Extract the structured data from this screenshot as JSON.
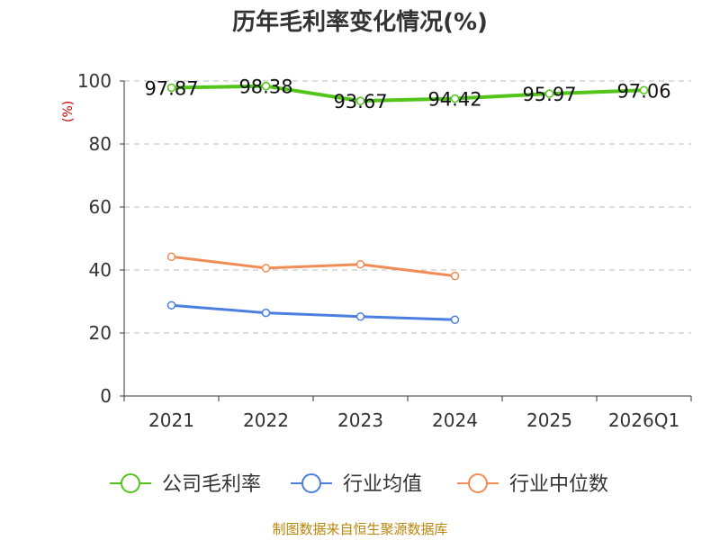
{
  "title": "历年毛利率变化情况(%)",
  "unit_label": "(%)",
  "footer": "制图数据来自恒生聚源数据库",
  "chart_data": {
    "type": "line",
    "categories": [
      "2021",
      "2022",
      "2023",
      "2024",
      "2025",
      "2026Q1"
    ],
    "ylim": [
      0,
      100
    ],
    "yticks": [
      0,
      20,
      40,
      60,
      80,
      100
    ],
    "grid": true,
    "legend_position": "bottom",
    "series": [
      {
        "name": "公司毛利率",
        "color": "#52c41a",
        "values": [
          97.87,
          98.38,
          93.67,
          94.42,
          95.97,
          97.06
        ],
        "labels": [
          "97.87",
          "98.38",
          "93.67",
          "94.42",
          "95.97",
          "97.06"
        ]
      },
      {
        "name": "行业均值",
        "color": "#4a7fe0",
        "values": [
          28.8,
          26.4,
          25.2,
          24.2,
          null,
          null
        ]
      },
      {
        "name": "行业中位数",
        "color": "#f28c55",
        "values": [
          44.2,
          40.6,
          41.8,
          38.1,
          null,
          null
        ]
      }
    ]
  }
}
